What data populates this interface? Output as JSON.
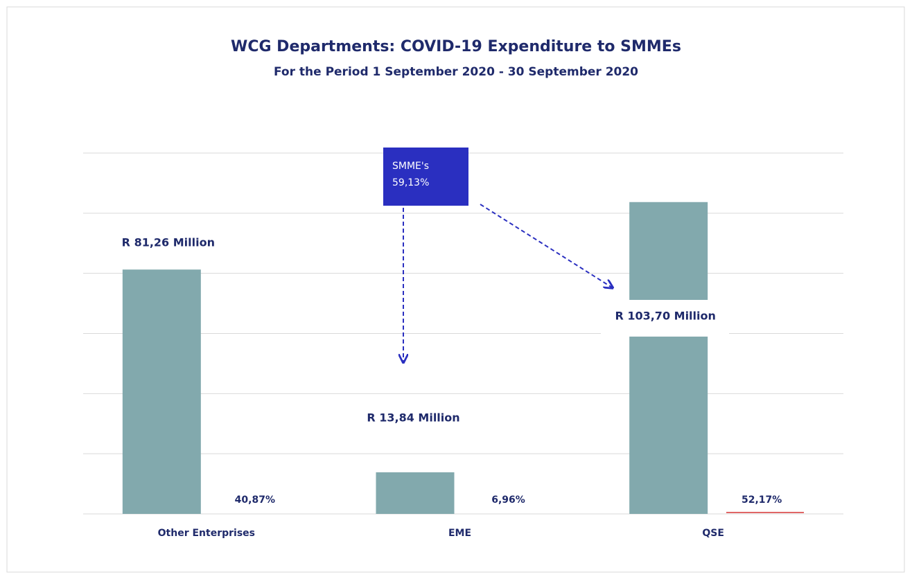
{
  "chart_data": {
    "type": "bar",
    "title": "WCG Departments: COVID-19 Expenditure to SMMEs",
    "subtitle": "For the Period 1 September 2020 - 30 September 2020",
    "categories": [
      "Other Enterprises",
      "EME",
      "QSE"
    ],
    "values": [
      81.26,
      13.84,
      103.7
    ],
    "value_labels": [
      "R 81,26 Million",
      "R 13,84 Million",
      "R 103,70 Million"
    ],
    "share_labels": [
      "40,87%",
      "6,96%",
      "52,17%"
    ],
    "callout": [
      "SMME's",
      "59,13%"
    ],
    "color": "#82a9ad",
    "ylim": [
      0,
      120
    ],
    "yticks": [
      0,
      20,
      40,
      60,
      80,
      100,
      120
    ],
    "grid": true
  }
}
